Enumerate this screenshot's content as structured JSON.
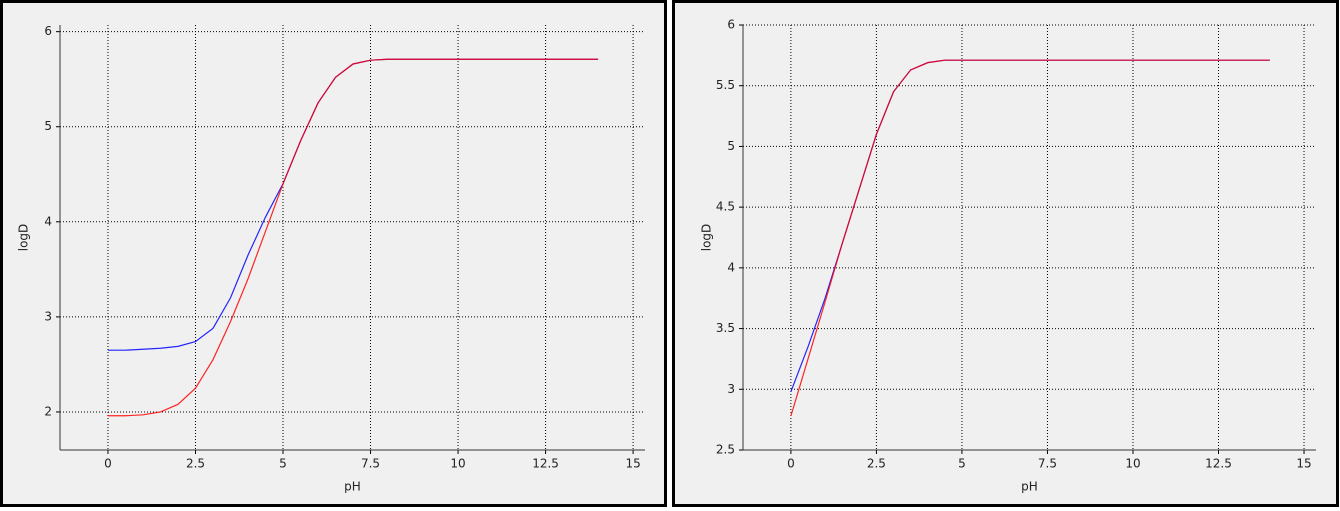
{
  "chart_data": [
    {
      "type": "line",
      "xlabel": "pH",
      "ylabel": "logD",
      "x": [
        0,
        0.5,
        1,
        1.5,
        2,
        2.5,
        3,
        3.5,
        4,
        4.5,
        5,
        5.5,
        6,
        6.5,
        7,
        7.5,
        8,
        8.5,
        9,
        9.5,
        10,
        10.5,
        11,
        11.5,
        12,
        12.5,
        13,
        13.5,
        14
      ],
      "series": [
        {
          "color": "#0000ff",
          "values": [
            2.65,
            2.65,
            2.66,
            2.67,
            2.69,
            2.74,
            2.88,
            3.2,
            3.65,
            4.05,
            4.4,
            4.85,
            5.25,
            5.52,
            5.66,
            5.7,
            5.71,
            5.71,
            5.71,
            5.71,
            5.71,
            5.71,
            5.71,
            5.71,
            5.71,
            5.71,
            5.71,
            5.71,
            5.71
          ]
        },
        {
          "color": "#ff0000",
          "values": [
            1.96,
            1.96,
            1.97,
            2.0,
            2.08,
            2.25,
            2.55,
            2.95,
            3.4,
            3.9,
            4.4,
            4.85,
            5.25,
            5.52,
            5.66,
            5.7,
            5.71,
            5.71,
            5.71,
            5.71,
            5.71,
            5.71,
            5.71,
            5.71,
            5.71,
            5.71,
            5.71,
            5.71,
            5.71
          ]
        }
      ],
      "xlim": [
        -1.37,
        15.34
      ],
      "xticks": [
        0,
        2.5,
        5,
        7.5,
        10,
        12.5,
        15
      ],
      "ylim": [
        1.6,
        6.07
      ],
      "yticks": [
        2,
        3,
        4,
        5,
        6
      ],
      "grid": true
    },
    {
      "type": "line",
      "xlabel": "pH",
      "ylabel": "logD",
      "x": [
        0,
        0.5,
        1,
        1.5,
        2,
        2.5,
        3,
        3.5,
        4,
        4.5,
        5,
        5.5,
        6,
        6.5,
        7,
        7.5,
        8,
        8.5,
        9,
        9.5,
        10,
        10.5,
        11,
        11.5,
        12,
        12.5,
        13,
        13.5,
        14
      ],
      "series": [
        {
          "color": "#0000ff",
          "values": [
            2.98,
            3.35,
            3.75,
            4.2,
            4.65,
            5.1,
            5.45,
            5.63,
            5.69,
            5.71,
            5.71,
            5.71,
            5.71,
            5.71,
            5.71,
            5.71,
            5.71,
            5.71,
            5.71,
            5.71,
            5.71,
            5.71,
            5.71,
            5.71,
            5.71,
            5.71,
            5.71,
            5.71,
            5.71
          ]
        },
        {
          "color": "#ff0000",
          "values": [
            2.78,
            3.25,
            3.72,
            4.2,
            4.65,
            5.1,
            5.45,
            5.63,
            5.69,
            5.71,
            5.71,
            5.71,
            5.71,
            5.71,
            5.71,
            5.71,
            5.71,
            5.71,
            5.71,
            5.71,
            5.71,
            5.71,
            5.71,
            5.71,
            5.71,
            5.71,
            5.71,
            5.71,
            5.71
          ]
        }
      ],
      "xlim": [
        -1.4,
        15.35
      ],
      "xticks": [
        0,
        2.5,
        5,
        7.5,
        10,
        12.5,
        15
      ],
      "ylim": [
        2.5,
        6
      ],
      "yticks": [
        2.5,
        3,
        3.5,
        4,
        4.5,
        5,
        5.5,
        6
      ],
      "grid": true
    }
  ]
}
